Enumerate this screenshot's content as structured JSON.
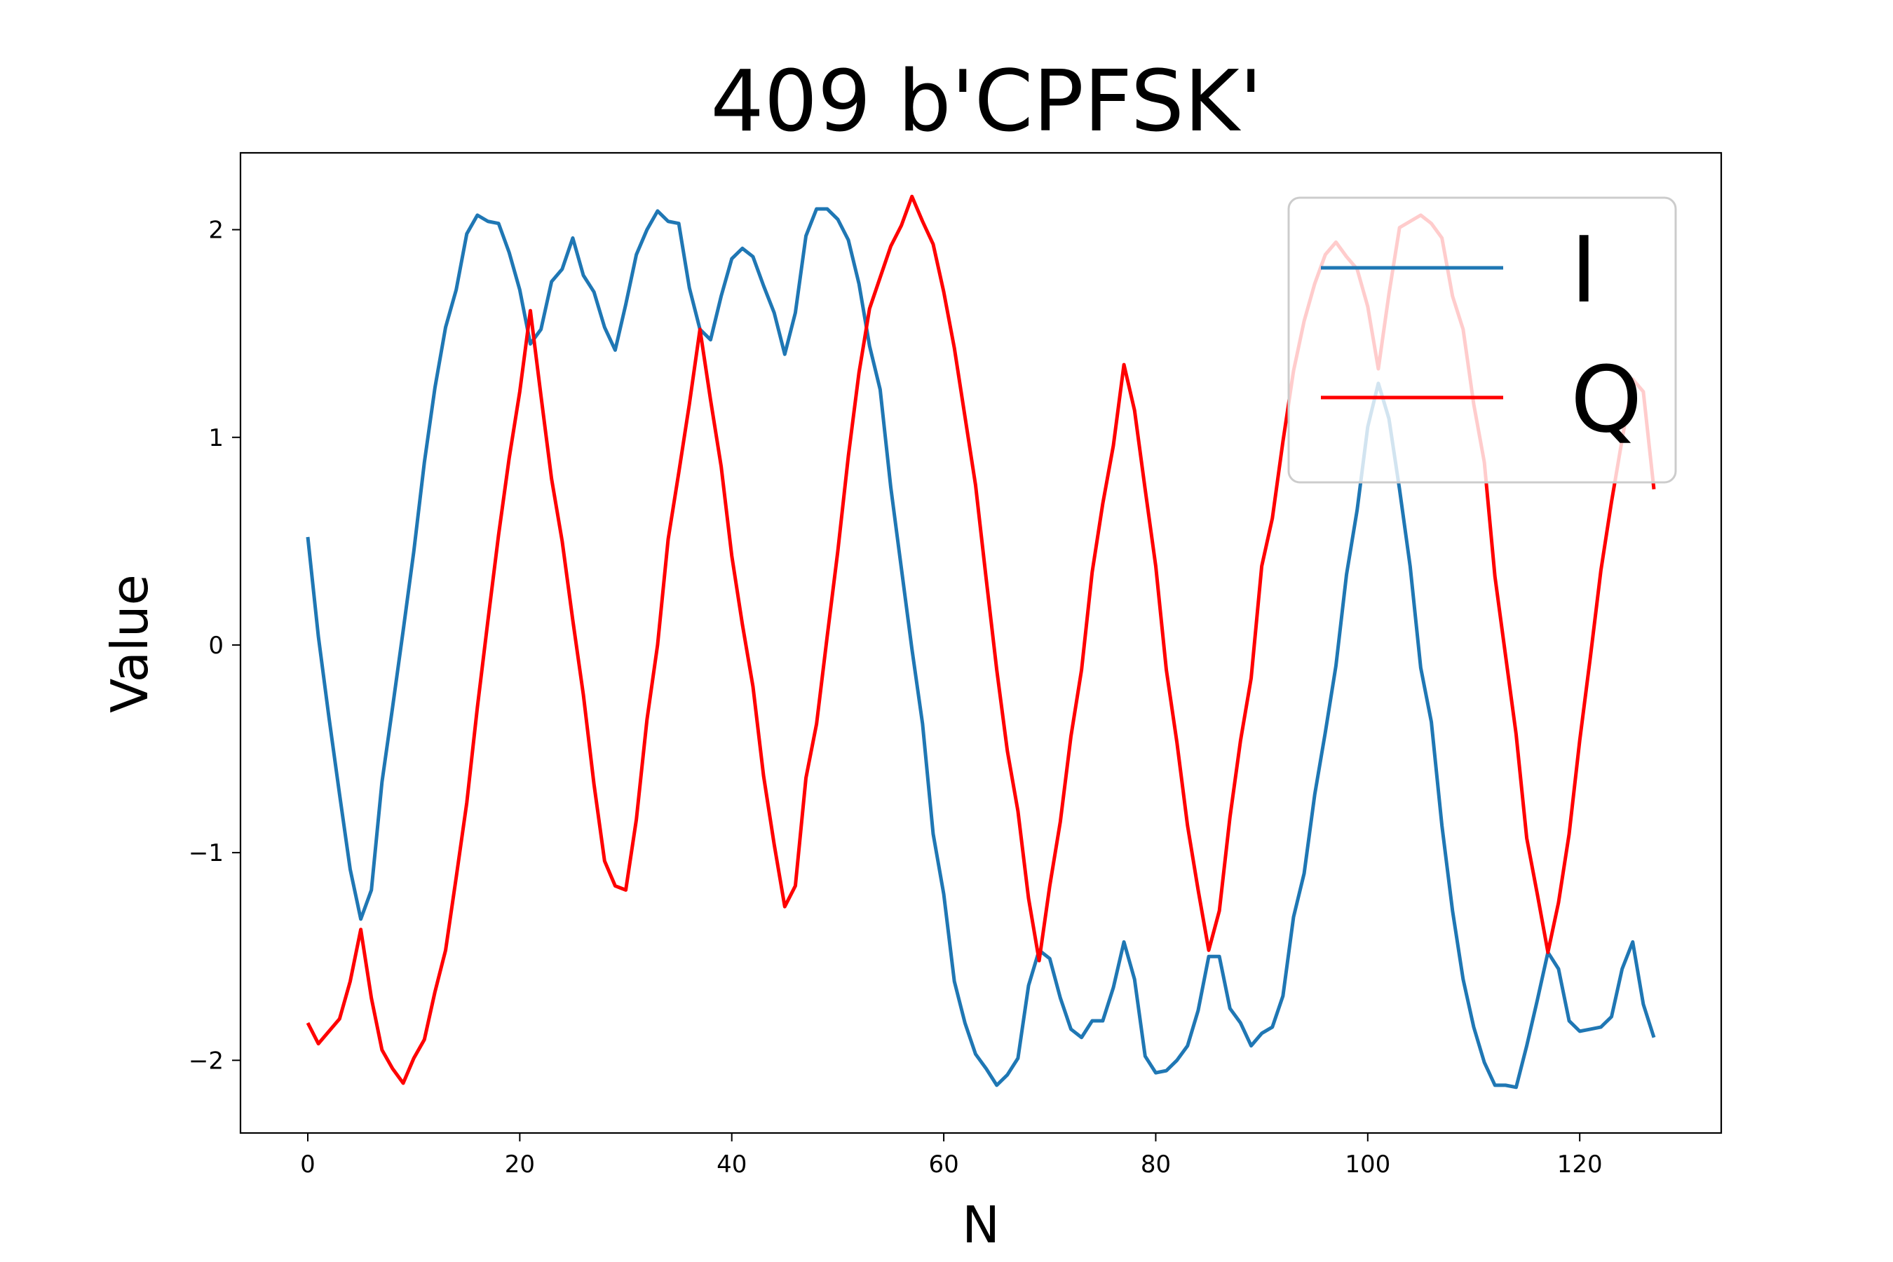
{
  "chart_data": {
    "type": "line",
    "title": "409 b'CPFSK'",
    "xlabel": "N",
    "ylabel": "Value",
    "xlim": [
      -6.35,
      133.35
    ],
    "ylim": [
      -2.35,
      2.37
    ],
    "xticks": [
      0,
      20,
      40,
      60,
      80,
      100,
      120
    ],
    "yticks": [
      -2,
      -1,
      0,
      1,
      2
    ],
    "xtick_labels": [
      "0",
      "20",
      "40",
      "60",
      "80",
      "100",
      "120"
    ],
    "ytick_labels": [
      "−2",
      "−1",
      "0",
      "1",
      "2"
    ],
    "legend_position": "upper right",
    "series": [
      {
        "name": "I",
        "color": "#1f77b4",
        "values": [
          0.52,
          0.04,
          -0.35,
          -0.72,
          -1.08,
          -1.32,
          -1.18,
          -0.66,
          -0.3,
          0.07,
          0.45,
          0.88,
          1.24,
          1.53,
          1.71,
          1.98,
          2.07,
          2.04,
          2.03,
          1.89,
          1.71,
          1.45,
          1.52,
          1.75,
          1.81,
          1.96,
          1.78,
          1.7,
          1.53,
          1.42,
          1.64,
          1.88,
          2.0,
          2.09,
          2.04,
          2.03,
          1.72,
          1.52,
          1.47,
          1.68,
          1.86,
          1.91,
          1.87,
          1.73,
          1.6,
          1.4,
          1.6,
          1.97,
          2.1,
          2.1,
          2.05,
          1.95,
          1.74,
          1.44,
          1.23,
          0.76,
          0.37,
          -0.02,
          -0.38,
          -0.91,
          -1.2,
          -1.62,
          -1.82,
          -1.97,
          -2.04,
          -2.12,
          -2.07,
          -1.99,
          -1.64,
          -1.47,
          -1.51,
          -1.7,
          -1.85,
          -1.89,
          -1.81,
          -1.81,
          -1.65,
          -1.43,
          -1.61,
          -1.98,
          -2.06,
          -2.05,
          -2.0,
          -1.93,
          -1.76,
          -1.5,
          -1.5,
          -1.75,
          -1.82,
          -1.93,
          -1.87,
          -1.84,
          -1.69,
          -1.31,
          -1.1,
          -0.72,
          -0.42,
          -0.1,
          0.34,
          0.65,
          1.05,
          1.26,
          1.09,
          0.75,
          0.38,
          -0.11,
          -0.37,
          -0.87,
          -1.28,
          -1.61,
          -1.84,
          -2.01,
          -2.12,
          -2.12,
          -2.13,
          -1.93,
          -1.71,
          -1.48,
          -1.56,
          -1.81,
          -1.86,
          -1.85,
          -1.84,
          -1.79,
          -1.56,
          -1.43,
          -1.73,
          -1.89
        ]
      },
      {
        "name": "Q",
        "color": "#ff0000",
        "values": [
          -1.82,
          -1.92,
          -1.86,
          -1.8,
          -1.62,
          -1.37,
          -1.7,
          -1.95,
          -2.04,
          -2.11,
          -1.99,
          -1.9,
          -1.67,
          -1.47,
          -1.12,
          -0.76,
          -0.3,
          0.12,
          0.53,
          0.9,
          1.22,
          1.61,
          1.2,
          0.8,
          0.5,
          0.12,
          -0.24,
          -0.67,
          -1.04,
          -1.16,
          -1.18,
          -0.84,
          -0.36,
          0.0,
          0.51,
          0.83,
          1.16,
          1.52,
          1.18,
          0.86,
          0.43,
          0.1,
          -0.2,
          -0.63,
          -0.96,
          -1.26,
          -1.16,
          -0.64,
          -0.38,
          0.04,
          0.45,
          0.91,
          1.31,
          1.62,
          1.77,
          1.92,
          2.02,
          2.16,
          2.04,
          1.93,
          1.7,
          1.43,
          1.1,
          0.77,
          0.32,
          -0.12,
          -0.51,
          -0.8,
          -1.22,
          -1.52,
          -1.16,
          -0.85,
          -0.44,
          -0.12,
          0.35,
          0.68,
          0.96,
          1.35,
          1.13,
          0.75,
          0.38,
          -0.12,
          -0.47,
          -0.87,
          -1.18,
          -1.47,
          -1.28,
          -0.83,
          -0.46,
          -0.16,
          0.38,
          0.61,
          0.98,
          1.32,
          1.56,
          1.74,
          1.88,
          1.94,
          1.87,
          1.81,
          1.63,
          1.33,
          1.69,
          2.01,
          2.04,
          2.07,
          2.03,
          1.96,
          1.68,
          1.52,
          1.16,
          0.88,
          0.33,
          -0.05,
          -0.43,
          -0.93,
          -1.2,
          -1.48,
          -1.24,
          -0.91,
          -0.46,
          -0.06,
          0.36,
          0.69,
          0.99,
          1.28,
          1.22,
          0.75
        ]
      }
    ]
  }
}
